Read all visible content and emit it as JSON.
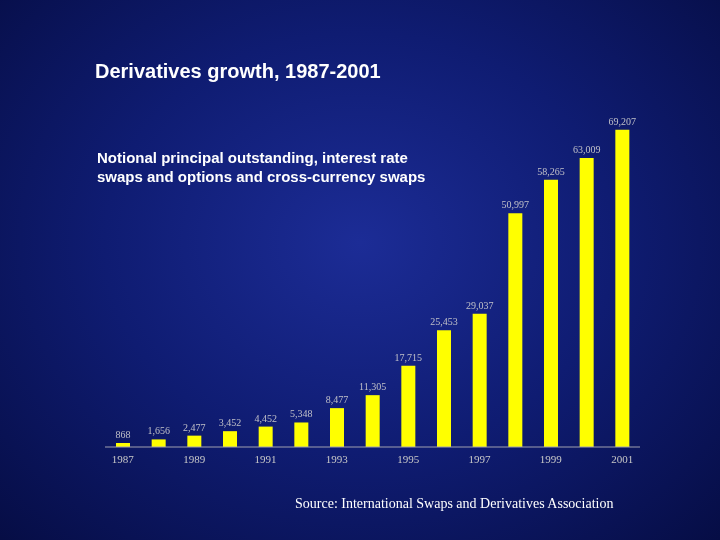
{
  "chart_data": {
    "type": "bar",
    "title": "Derivatives growth, 1987-2001",
    "subtitle": "Notional principal outstanding, interest rate swaps and options and cross-currency swaps",
    "source": "Source: International Swaps and Derivatives Association",
    "categories": [
      "1987",
      null,
      "1989",
      null,
      "1991",
      null,
      "1993",
      null,
      "1995",
      null,
      "1997",
      null,
      "1999",
      null,
      "2001"
    ],
    "values": [
      868,
      1656,
      2477,
      3452,
      4452,
      5348,
      8477,
      11305,
      17715,
      25453,
      29037,
      50997,
      58265,
      63009,
      69207
    ],
    "value_labels": [
      "868",
      "1,656",
      "2,477",
      "3,452",
      "4,452",
      "5,348",
      "8,477",
      "11,305",
      "17,715",
      "25,453",
      "29,037",
      "50,997",
      "58,265",
      "63,009",
      "69,207"
    ],
    "color": "#ffff00",
    "ylim": [
      0,
      70000
    ],
    "data_labels": true,
    "tick_labels": "x"
  }
}
